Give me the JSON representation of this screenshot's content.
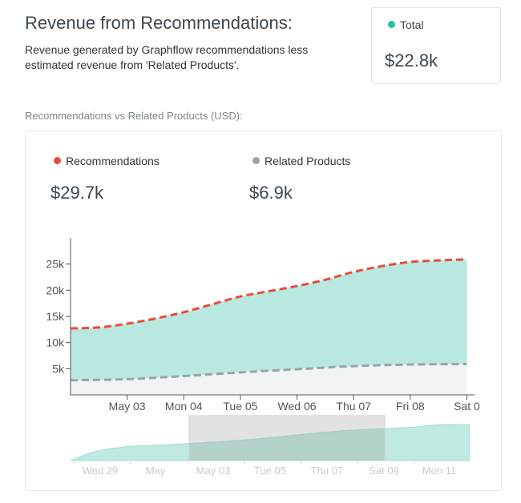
{
  "header": {
    "title": "Revenue from Recommendations:",
    "subtitle": "Revenue generated by Graphflow recommendations less estimated revenue from 'Related Products'."
  },
  "total": {
    "label": "Total",
    "value": "$22.8k",
    "color": "#2bbd9c"
  },
  "section_label": "Recommendations vs Related Products (USD):",
  "legend": {
    "recommendations": {
      "label": "Recommendations",
      "value": "$29.7k",
      "color": "#e84c3d"
    },
    "related": {
      "label": "Related Products",
      "value": "$6.9k",
      "color": "#95a5a6"
    }
  },
  "chart_data": {
    "type": "area",
    "title": "",
    "xlabel": "",
    "ylabel": "",
    "ylim": [
      0,
      30000
    ],
    "yticks": [
      5000,
      10000,
      15000,
      20000,
      25000
    ],
    "ytick_labels": [
      "5k",
      "10k",
      "15k",
      "20k",
      "25k"
    ],
    "xtick_labels": [
      "May 03",
      "Mon 04",
      "Tue 05",
      "Wed 06",
      "Thu 07",
      "Fri 08",
      "Sat 0"
    ],
    "x_days": [
      2,
      3,
      4,
      5,
      6,
      7,
      8
    ],
    "series": [
      {
        "name": "Recommendations",
        "style": "dashed",
        "color": "#e84c3d",
        "points": [
          [
            1,
            12700
          ],
          [
            1.5,
            12900
          ],
          [
            2,
            13600
          ],
          [
            2.5,
            14600
          ],
          [
            3,
            15800
          ],
          [
            3.5,
            17300
          ],
          [
            4,
            18800
          ],
          [
            4.5,
            19800
          ],
          [
            5,
            20800
          ],
          [
            5.5,
            22000
          ],
          [
            6,
            23500
          ],
          [
            6.5,
            24600
          ],
          [
            7,
            25400
          ],
          [
            7.5,
            25700
          ],
          [
            8,
            25900
          ]
        ]
      },
      {
        "name": "Related Products",
        "style": "dashed",
        "color": "#95a5a6",
        "points": [
          [
            1,
            2800
          ],
          [
            2,
            3000
          ],
          [
            3,
            3600
          ],
          [
            4,
            4300
          ],
          [
            5,
            4900
          ],
          [
            6,
            5500
          ],
          [
            7,
            5800
          ],
          [
            8,
            5900
          ]
        ]
      }
    ],
    "fill_between_color": "#b9e8e0",
    "fill_below_color": "#f2f4f4",
    "navigator": {
      "labels": [
        "Wed 29",
        "May",
        "May 03",
        "Tue 05",
        "Thu 07",
        "Sat 09",
        "Mon 11"
      ]
    }
  }
}
